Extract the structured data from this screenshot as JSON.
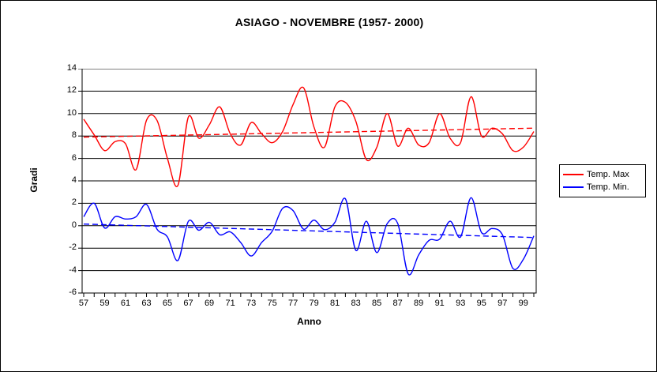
{
  "window": {
    "background": "#FFFFFF",
    "border_color": "#000000"
  },
  "title": "ASIAGO - NOVEMBRE (1957- 2000)",
  "axes": {
    "y_label": "Gradi",
    "x_label": "Anno",
    "y_ticks": [
      14,
      12,
      10,
      8,
      6,
      4,
      2,
      0,
      -2,
      -4,
      -6
    ],
    "x_tick_labels": [
      "57",
      "59",
      "61",
      "63",
      "65",
      "67",
      "69",
      "71",
      "73",
      "75",
      "77",
      "79",
      "81",
      "83",
      "85",
      "87",
      "89",
      "91",
      "93",
      "95",
      "97",
      "99"
    ],
    "grid_color": "#000000"
  },
  "legend": {
    "items": [
      {
        "label": "Temp. Max",
        "color": "#FF0000"
      },
      {
        "label": "Temp. Min.",
        "color": "#0000FF"
      }
    ]
  },
  "chart_data": {
    "type": "line",
    "title": "ASIAGO - NOVEMBRE (1957- 2000)",
    "xlabel": "Anno",
    "ylabel": "Gradi",
    "ylim": [
      -6,
      14
    ],
    "grid": "horizontal",
    "legend_position": "right",
    "x": [
      1957,
      1958,
      1959,
      1960,
      1961,
      1962,
      1963,
      1964,
      1965,
      1966,
      1967,
      1968,
      1969,
      1970,
      1971,
      1972,
      1973,
      1974,
      1975,
      1976,
      1977,
      1978,
      1979,
      1980,
      1981,
      1982,
      1983,
      1984,
      1985,
      1986,
      1987,
      1988,
      1989,
      1990,
      1991,
      1992,
      1993,
      1994,
      1995,
      1996,
      1997,
      1998,
      1999,
      2000
    ],
    "series": [
      {
        "name": "Temp. Max",
        "color": "#FF0000",
        "smooth": true,
        "values": [
          9.5,
          8.1,
          6.7,
          7.5,
          7.3,
          5.0,
          9.4,
          9.4,
          6.0,
          3.6,
          9.7,
          7.8,
          9.0,
          10.6,
          8.2,
          7.2,
          9.2,
          8.2,
          7.4,
          8.4,
          10.8,
          12.3,
          8.8,
          7.0,
          10.6,
          11.0,
          9.3,
          5.9,
          7.0,
          10.0,
          7.1,
          8.7,
          7.2,
          7.4,
          10.0,
          7.8,
          7.4,
          11.5,
          8.0,
          8.7,
          8.2,
          6.7,
          7.0,
          8.4
        ]
      },
      {
        "name": "Temp. Min.",
        "color": "#0000FF",
        "smooth": true,
        "values": [
          0.8,
          2.0,
          -0.2,
          0.8,
          0.6,
          0.8,
          1.9,
          -0.3,
          -1.0,
          -3.1,
          0.4,
          -0.4,
          0.3,
          -0.8,
          -0.55,
          -1.5,
          -2.7,
          -1.5,
          -0.5,
          1.55,
          1.35,
          -0.3,
          0.5,
          -0.35,
          0.3,
          2.4,
          -2.2,
          0.4,
          -2.4,
          0.2,
          0.2,
          -4.3,
          -2.6,
          -1.3,
          -1.2,
          0.4,
          -1.0,
          2.5,
          -0.6,
          -0.25,
          -0.8,
          -3.8,
          -3.0,
          -0.9
        ]
      }
    ],
    "trendlines": [
      {
        "series": "Temp. Max",
        "color": "#FF0000",
        "style": "dashed",
        "start_value": 7.9,
        "end_value": 8.7
      },
      {
        "series": "Temp. Min.",
        "color": "#0000FF",
        "style": "dashed",
        "start_value": 0.15,
        "end_value": -1.05
      }
    ]
  }
}
